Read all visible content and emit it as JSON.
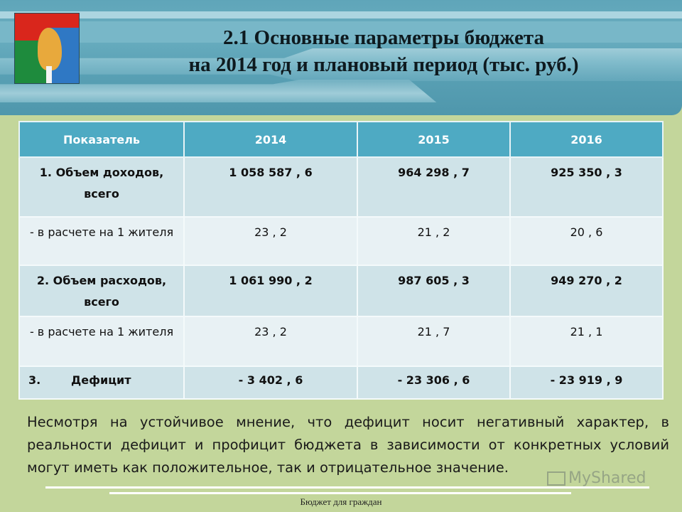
{
  "header": {
    "title_line1": "2.1 Основные параметры бюджета",
    "title_line2": "на 2014 год и плановый период (тыс. руб.)",
    "emblem": "coat-of-arms-emblem"
  },
  "table": {
    "columns": [
      "Показатель",
      "2014",
      "2015",
      "2016"
    ],
    "rows": [
      {
        "label": "1. Объем доходов, всего",
        "values": [
          "1 058 587 , 6",
          "964 298 , 7",
          "925 350 , 3"
        ],
        "style": "bold"
      },
      {
        "label": "- в расчете на 1 жителя",
        "values": [
          "23 , 2",
          "21 , 2",
          "20 , 6"
        ],
        "style": "normal"
      },
      {
        "label": "2. Объем расходов, всего",
        "values": [
          "1 061 990 , 2",
          "987 605 , 3",
          "949 270 , 2"
        ],
        "style": "bold"
      },
      {
        "label": "- в расчете на 1 жителя",
        "values": [
          "23 , 2",
          "21 , 7",
          "21 , 1"
        ],
        "style": "normal"
      },
      {
        "label_number": "3.",
        "label": "Дефицит",
        "values": [
          "- 3 402 , 6",
          "- 23 306 , 6",
          "- 23 919 , 9"
        ],
        "style": "bold"
      }
    ]
  },
  "paragraph": "Несмотря на устойчивое мнение, что дефицит носит негативный характер, в реальности дефицит и профицит бюджета в зависимости от конкретных условий могут иметь как положительное, так и отрицательное значение.",
  "footer": "Бюджет для граждан",
  "watermark": "MyShared",
  "colors": {
    "background": "#c3d69b",
    "header": "#5fa5b9",
    "table_header": "#4eaac3",
    "row_dark": "#cfe3e8",
    "row_light": "#e8f1f4"
  }
}
